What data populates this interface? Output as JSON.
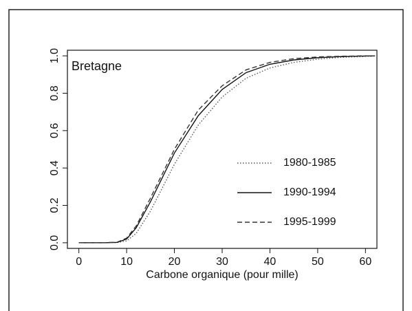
{
  "chart_data": {
    "type": "line",
    "annotation": "Bretagne",
    "x_label": "Carbone organique (pour mille)",
    "x": [
      0,
      5,
      8,
      10,
      12,
      15,
      20,
      25,
      30,
      35,
      40,
      45,
      50,
      55,
      60,
      62
    ],
    "series": [
      {
        "name": "1980-1985",
        "color": "#555555",
        "dash": "1.5,2.5",
        "values": [
          0,
          0,
          0.001,
          0.01,
          0.05,
          0.17,
          0.42,
          0.63,
          0.78,
          0.88,
          0.935,
          0.965,
          0.982,
          0.992,
          0.997,
          0.999
        ]
      },
      {
        "name": "1990-1994",
        "color": "#111111",
        "dash": "none",
        "values": [
          0,
          0,
          0.002,
          0.02,
          0.08,
          0.22,
          0.48,
          0.68,
          0.82,
          0.91,
          0.955,
          0.978,
          0.99,
          0.996,
          0.999,
          1.0
        ]
      },
      {
        "name": "1995-1999",
        "color": "#333333",
        "dash": "7,4",
        "values": [
          0,
          0,
          0.003,
          0.025,
          0.09,
          0.24,
          0.5,
          0.71,
          0.84,
          0.925,
          0.965,
          0.985,
          0.994,
          0.998,
          1.0,
          1.0
        ]
      }
    ],
    "xlim": [
      -2.4,
      62.4
    ],
    "xticks": [
      0,
      10,
      20,
      30,
      40,
      50,
      60
    ],
    "ylim": [
      -0.03,
      1.03
    ],
    "yticks": [
      {
        "value": 0,
        "label": "0.0"
      },
      0.2,
      0.4,
      0.6,
      0.8,
      {
        "value": 1,
        "label": "1.0"
      }
    ],
    "legend": "right",
    "grid": false
  }
}
